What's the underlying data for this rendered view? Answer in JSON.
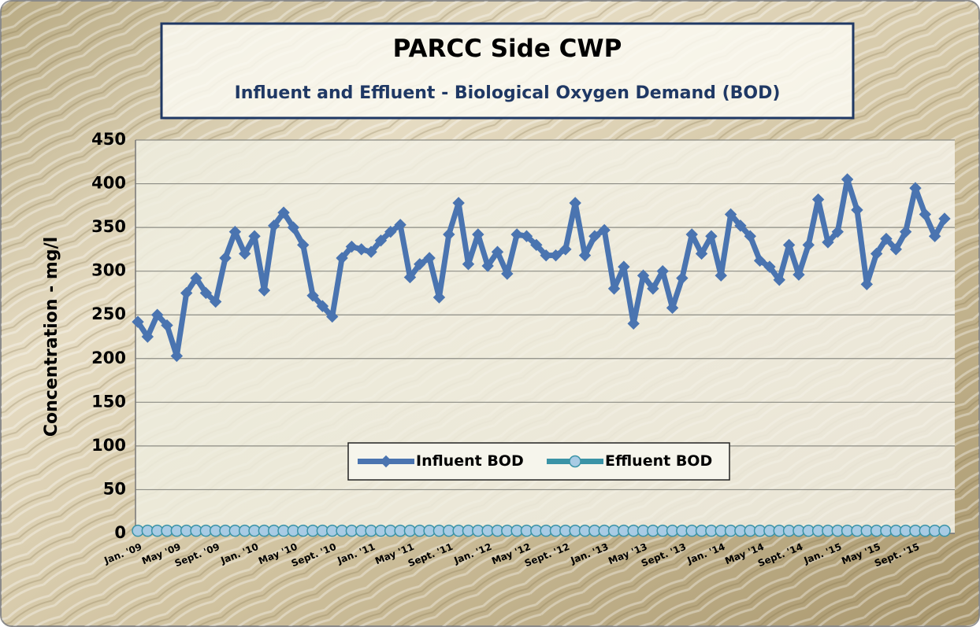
{
  "chart_data": {
    "type": "line",
    "title": "PARCC Side CWP",
    "subtitle": "Influent and Effluent - Biological Oxygen Demand (BOD)",
    "y_label": "Concentration - mg/l",
    "categories": [
      "Jan. '09",
      null,
      null,
      null,
      "May '09",
      null,
      null,
      null,
      "Sept. '09",
      null,
      null,
      null,
      "Jan. '10",
      null,
      null,
      null,
      "May '10",
      null,
      null,
      null,
      "Sept. '10",
      null,
      null,
      null,
      "Jan. '11",
      null,
      null,
      null,
      "May '11",
      null,
      null,
      null,
      "Sept. '11",
      null,
      null,
      null,
      "Jan. '12",
      null,
      null,
      null,
      "May '12",
      null,
      null,
      null,
      "Sept. '12",
      null,
      null,
      null,
      "Jan. '13",
      null,
      null,
      null,
      "May '13",
      null,
      null,
      null,
      "Sept. '13",
      null,
      null,
      null,
      "Jan. '14",
      null,
      null,
      null,
      "May '14",
      null,
      null,
      null,
      "Sept. '14",
      null,
      null,
      null,
      "Jan. '15",
      null,
      null,
      null,
      "May '15",
      null,
      null,
      null,
      "Sept. '15",
      null,
      null,
      null
    ],
    "series": [
      {
        "name": "Influent BOD",
        "color": "#4a74b0",
        "marker": "diamond",
        "values": [
          242,
          225,
          250,
          238,
          203,
          275,
          292,
          275,
          265,
          315,
          345,
          320,
          340,
          278,
          352,
          367,
          350,
          330,
          272,
          260,
          248,
          315,
          328,
          325,
          322,
          335,
          345,
          353,
          293,
          308,
          315,
          270,
          342,
          378,
          308,
          342,
          306,
          322,
          297,
          342,
          340,
          330,
          318,
          318,
          325,
          378,
          318,
          340,
          347,
          280,
          305,
          240,
          295,
          280,
          300,
          258,
          292,
          342,
          320,
          340,
          295,
          365,
          352,
          340,
          312,
          305,
          290,
          330,
          296,
          330,
          382,
          333,
          345,
          405,
          370,
          285,
          320,
          337,
          325,
          345,
          395,
          365,
          340,
          360
        ]
      },
      {
        "name": "Effluent BOD",
        "color": "#3a93a6",
        "marker": "circle",
        "values": [
          3,
          3,
          3,
          3,
          3,
          3,
          3,
          3,
          3,
          3,
          3,
          3,
          3,
          3,
          3,
          3,
          3,
          3,
          3,
          3,
          3,
          3,
          3,
          3,
          3,
          3,
          3,
          3,
          3,
          3,
          3,
          3,
          3,
          3,
          3,
          3,
          3,
          3,
          3,
          3,
          3,
          3,
          3,
          3,
          3,
          3,
          3,
          3,
          3,
          3,
          3,
          3,
          3,
          3,
          3,
          3,
          3,
          3,
          3,
          3,
          3,
          3,
          3,
          3,
          3,
          3,
          3,
          3,
          3,
          3,
          3,
          3,
          3,
          3,
          3,
          3,
          3,
          3,
          3,
          3,
          3,
          3,
          3,
          3
        ]
      }
    ],
    "ylim": [
      0,
      450
    ],
    "yticks": [
      0,
      50,
      100,
      150,
      200,
      250,
      300,
      350,
      400,
      450
    ],
    "grid": true,
    "legend": "lower-center"
  }
}
